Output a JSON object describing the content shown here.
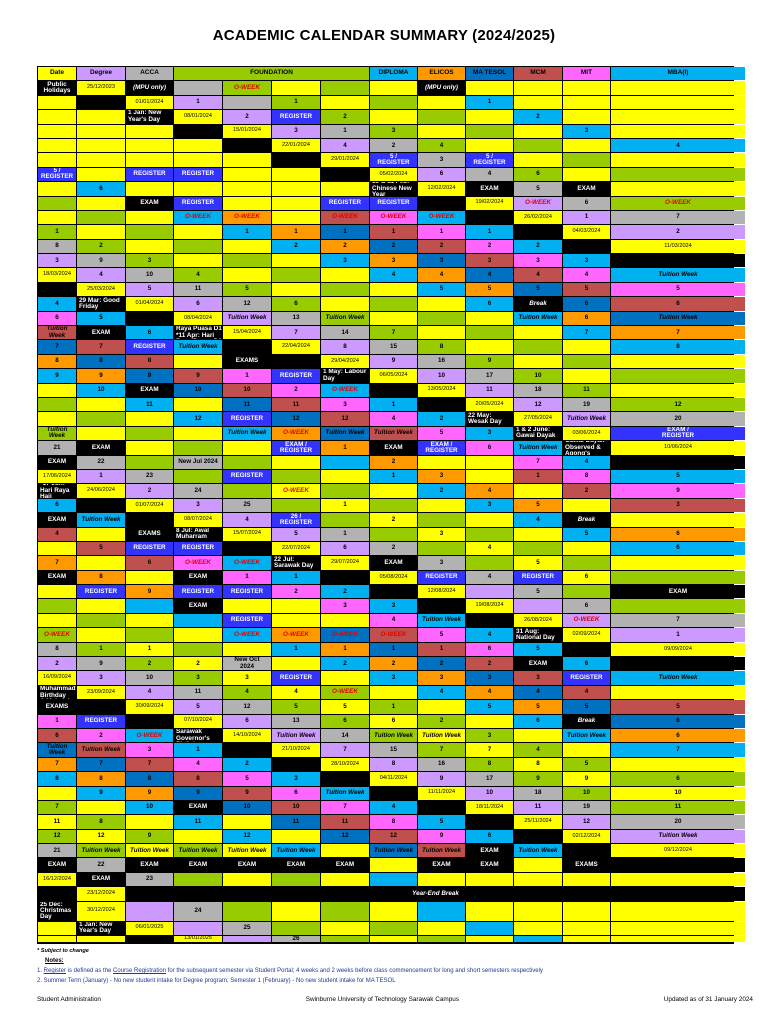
{
  "title": "ACADEMIC CALENDAR SUMMARY (2024/2025)",
  "colors": {
    "lav": "#cc99ff",
    "gray": "#b2b2b2",
    "grn": "#99cc00",
    "yel": "#ffff00",
    "org": "#ff9900",
    "blu": "#0070c0",
    "brn": "#c0504d",
    "pnk": "#ff66ff",
    "cyn": "#00b0f0",
    "blk": "#000000",
    "reg": "#3333ff",
    "hdr": "#ffff00"
  },
  "header": [
    "Date",
    "Degree",
    "ACCA",
    "FOUNDATION",
    "DIPLOMA",
    "ELICOS",
    "MA TESOL",
    "MCM",
    "MIT",
    "MBA(I)",
    "Public Holidays"
  ],
  "header_colors": [
    "hdr",
    "lav",
    "gray",
    "grn",
    "cyn",
    "org",
    "blu",
    "brn",
    "pnk",
    "cyn",
    "blk"
  ],
  "rows": [
    {
      "d": "25/12/2023",
      "deg": "(MPU only)",
      "acca": "",
      "f": [
        "O-WEEK",
        "",
        "",
        ""
      ],
      "dip": "(MPU only)",
      "el": "",
      "ma": "",
      "mcm": "",
      "mit": "",
      "mba": "",
      "hol": ""
    },
    {
      "d": "01/01/2024",
      "deg": "1",
      "acca": "",
      "f": [
        "1",
        "",
        "",
        ""
      ],
      "dip": "1",
      "el": "",
      "ma": "",
      "mcm": "",
      "mit": "",
      "mba": "",
      "hol": "1 Jan: New Year's Day"
    },
    {
      "d": "08/01/2024",
      "deg": "2",
      "acca": "REGISTER",
      "f": [
        "2",
        "",
        "",
        ""
      ],
      "dip": "2",
      "el": "",
      "ma": "",
      "mcm": "",
      "mit": "",
      "mba": "",
      "hol": ""
    },
    {
      "d": "15/01/2024",
      "deg": "3",
      "acca": "1",
      "f": [
        "3",
        "",
        "",
        ""
      ],
      "dip": "3",
      "el": "",
      "ma": "",
      "mcm": "",
      "mit": "",
      "mba": "",
      "hol": ""
    },
    {
      "d": "22/01/2024",
      "deg": "4",
      "acca": "2",
      "f": [
        "4",
        "",
        "",
        ""
      ],
      "dip": "4",
      "el": "",
      "ma": "",
      "mcm": "",
      "mit": "",
      "mba": "",
      "hol": ""
    },
    {
      "d": "29/01/2024",
      "deg": "5 /\nREGISTER",
      "acca": "3",
      "f": [
        "5 /\nREGISTER",
        "",
        "",
        ""
      ],
      "dip": "5 /\nREGISTER",
      "el": "",
      "ma": "REGISTER",
      "mcm": "REGISTER",
      "mit": "",
      "mba": "",
      "hol": ""
    },
    {
      "d": "05/02/2024",
      "deg": "6",
      "acca": "4",
      "f": [
        "6",
        "",
        "",
        ""
      ],
      "dip": "6",
      "el": "",
      "ma": "",
      "mcm": "",
      "mit": "",
      "mba": "",
      "hol": "10 & 11 Feb: Chinese New Year"
    },
    {
      "d": "12/02/2024",
      "deg": "EXAM",
      "acca": "5",
      "f": [
        "EXAM",
        "",
        "",
        ""
      ],
      "dip": "EXAM",
      "el": "REGISTER",
      "ma": "",
      "mcm": "",
      "mit": "REGISTER",
      "mba": "REGISTER",
      "hol": ""
    },
    {
      "d": "19/02/2024",
      "deg": "O-WEEK",
      "acca": "6",
      "f": [
        "O-WEEK",
        "",
        "",
        ""
      ],
      "dip": "O-WEEK",
      "el": "O-WEEK",
      "ma": "",
      "mcm": "O-WEEK",
      "mit": "O-WEEK",
      "mba": "O-WEEK",
      "hol": ""
    },
    {
      "d": "26/02/2024",
      "deg": "1",
      "acca": "7",
      "f": [
        "1",
        "",
        "",
        ""
      ],
      "dip": "1",
      "el": "1",
      "ma": "1",
      "mcm": "1",
      "mit": "1",
      "mba": "1",
      "hol": ""
    },
    {
      "d": "04/03/2024",
      "deg": "2",
      "acca": "8",
      "f": [
        "2",
        "",
        "",
        ""
      ],
      "dip": "2",
      "el": "2",
      "ma": "2",
      "mcm": "2",
      "mit": "2",
      "mba": "2",
      "hol": ""
    },
    {
      "d": "11/03/2024",
      "deg": "3",
      "acca": "9",
      "f": [
        "3",
        "",
        "",
        ""
      ],
      "dip": "3",
      "el": "3",
      "ma": "3",
      "mcm": "3",
      "mit": "3",
      "mba": "3",
      "hol": ""
    },
    {
      "d": "18/03/2024",
      "deg": "4",
      "acca": "10",
      "f": [
        "4",
        "",
        "",
        ""
      ],
      "dip": "4",
      "el": "4",
      "ma": "4",
      "mcm": "4",
      "mit": "4",
      "mba": "Tuition Week",
      "hol": ""
    },
    {
      "d": "25/03/2024",
      "deg": "5",
      "acca": "11",
      "f": [
        "5",
        "",
        "",
        ""
      ],
      "dip": "5",
      "el": "5",
      "ma": "5",
      "mcm": "5",
      "mit": "5",
      "mba": "4",
      "hol": "29 Mar: Good Friday"
    },
    {
      "d": "01/04/2024",
      "deg": "6",
      "acca": "12",
      "f": [
        "6",
        "",
        "",
        ""
      ],
      "dip": "6",
      "el": "Break",
      "ma": "6",
      "mcm": "6",
      "mit": "6",
      "mba": "5",
      "hol": ""
    },
    {
      "d": "08/04/2024",
      "deg": "Tuition Week",
      "acca": "13",
      "f": [
        "Tuition Week",
        "",
        "",
        ""
      ],
      "dip": "Tuition Week",
      "el": "6",
      "ma": "Tuition Week",
      "mcm": "Tuition Week",
      "mit": "EXAM",
      "mba": "6",
      "hol": "*10 Apr: Hari Raya Puasa D1\n*11 Apr: Hari Raya Puasa D2"
    },
    {
      "d": "15/04/2024",
      "deg": "7",
      "acca": "14",
      "f": [
        "7",
        "",
        "",
        ""
      ],
      "dip": "7",
      "el": "7",
      "ma": "7",
      "mcm": "7",
      "mit": "REGISTER",
      "mba": "Tuition Week",
      "hol": ""
    },
    {
      "d": "22/04/2024",
      "deg": "8",
      "acca": "15",
      "f": [
        "8",
        "",
        "",
        ""
      ],
      "dip": "8",
      "el": "8",
      "ma": "8",
      "mcm": "8",
      "mit": "",
      "mba": "EXAMS",
      "hol": ""
    },
    {
      "d": "29/04/2024",
      "deg": "9",
      "acca": "16",
      "f": [
        "9",
        "",
        "",
        ""
      ],
      "dip": "9",
      "el": "9",
      "ma": "9",
      "mcm": "9",
      "mit": "1",
      "mba": "REGISTER",
      "hol": "1 May: Labour Day"
    },
    {
      "d": "06/05/2024",
      "deg": "10",
      "acca": "17",
      "f": [
        "10",
        "",
        "",
        ""
      ],
      "dip": "10",
      "el": "EXAM",
      "ma": "10",
      "mcm": "10",
      "mit": "2",
      "mba": "O-WEEK",
      "hol": ""
    },
    {
      "d": "13/05/2024",
      "deg": "11",
      "acca": "18",
      "f": [
        "11",
        "",
        "",
        ""
      ],
      "dip": "11",
      "el": "",
      "ma": "11",
      "mcm": "11",
      "mit": "3",
      "mba": "1",
      "hol": ""
    },
    {
      "d": "20/05/2024",
      "deg": "12",
      "acca": "19",
      "f": [
        "12",
        "",
        "",
        ""
      ],
      "dip": "12",
      "el": "REGISTER",
      "ma": "12",
      "mcm": "12",
      "mit": "4",
      "mba": "2",
      "hol": "22 May: Wesak Day"
    },
    {
      "d": "27/05/2024",
      "deg": "Tuition Week",
      "acca": "20",
      "f": [
        "Tuition Week",
        "",
        "",
        ""
      ],
      "dip": "Tuition Week",
      "el": "O-WEEK",
      "ma": "Tuition Week",
      "mcm": "Tuition Week",
      "mit": "5",
      "mba": "3",
      "hol": "1 & 2 June: Gawai Dayak"
    },
    {
      "d": "03/06/2024",
      "deg": "EXAM /\nREGISTER",
      "acca": "21",
      "f": [
        "EXAM",
        "",
        "",
        ""
      ],
      "dip": "EXAM /\nREGISTER",
      "el": "1",
      "ma": "EXAM",
      "mcm": "EXAM /\nREGISTER",
      "mit": "6",
      "mba": "Tuition Week",
      "hol": "3 & 4 June: Gawai Dayak Observed &\nAgong's Birthday"
    },
    {
      "d": "10/06/2024",
      "deg": "EXAM",
      "acca": "22",
      "f": [
        "",
        "New Jul 2024",
        "",
        ""
      ],
      "dip": "",
      "el": "2",
      "ma": "",
      "mcm": "",
      "mit": "7",
      "mba": "4",
      "hol": ""
    },
    {
      "d": "17/06/2024",
      "deg": "1",
      "acca": "23",
      "f": [
        "",
        "REGISTER",
        "",
        ""
      ],
      "dip": "1",
      "el": "3",
      "ma": "",
      "mcm": "1",
      "mit": "8",
      "mba": "5",
      "hol": "*17 Jun: Hari Raya Haji"
    },
    {
      "d": "24/06/2024",
      "deg": "2",
      "acca": "24",
      "f": [
        "",
        "O-WEEK",
        "",
        ""
      ],
      "dip": "2",
      "el": "4",
      "ma": "",
      "mcm": "2",
      "mit": "9",
      "mba": "6",
      "hol": ""
    },
    {
      "d": "01/07/2024",
      "deg": "3",
      "acca": "25",
      "f": [
        "",
        "1",
        "",
        ""
      ],
      "dip": "3",
      "el": "5",
      "ma": "",
      "mcm": "3",
      "mit": "EXAM",
      "mba": "Tuition Week",
      "hol": ""
    },
    {
      "d": "08/07/2024",
      "deg": "4",
      "acca": "26 /\nREGISTER",
      "f": [
        "",
        "2",
        "",
        ""
      ],
      "dip": "4",
      "el": "Break",
      "ma": "",
      "mcm": "4",
      "mit": "",
      "mba": "EXAMS",
      "hol": "8 Jul: Awal Muharram"
    },
    {
      "d": "15/07/2024",
      "deg": "5",
      "acca": "1",
      "f": [
        "",
        "3",
        "",
        ""
      ],
      "dip": "5",
      "el": "6",
      "ma": "",
      "mcm": "5",
      "mit": "REGISTER",
      "mba": "REGISTER",
      "hol": ""
    },
    {
      "d": "22/07/2024",
      "deg": "6",
      "acca": "2",
      "f": [
        "",
        "4",
        "",
        ""
      ],
      "dip": "6",
      "el": "7",
      "ma": "",
      "mcm": "6",
      "mit": "O-WEEK",
      "mba": "O-WEEK",
      "hol": "22 Jul: Sarawak Day"
    },
    {
      "d": "29/07/2024",
      "deg": "EXAM",
      "acca": "3",
      "f": [
        "",
        "5",
        "",
        ""
      ],
      "dip": "EXAM",
      "el": "8",
      "ma": "",
      "mcm": "EXAM",
      "mit": "1",
      "mba": "1",
      "hol": ""
    },
    {
      "d": "05/08/2024",
      "deg": "REGISTER",
      "acca": "4",
      "f": [
        "REGISTER",
        "6",
        "",
        ""
      ],
      "dip": "REGISTER",
      "el": "9",
      "ma": "REGISTER",
      "mcm": "REGISTER",
      "mit": "2",
      "mba": "2",
      "hol": ""
    },
    {
      "d": "12/08/2024",
      "deg": "",
      "acca": "5",
      "f": [
        "",
        "EXAM",
        "",
        ""
      ],
      "dip": "",
      "el": "EXAM",
      "ma": "",
      "mcm": "",
      "mit": "3",
      "mba": "3",
      "hol": ""
    },
    {
      "d": "19/08/2024",
      "deg": "",
      "acca": "6",
      "f": [
        "",
        "",
        "",
        ""
      ],
      "dip": "",
      "el": "REGISTER",
      "ma": "",
      "mcm": "",
      "mit": "4",
      "mba": "Tuition Week",
      "hol": ""
    },
    {
      "d": "26/08/2024",
      "deg": "O-WEEK",
      "acca": "7",
      "f": [
        "O-WEEK",
        "",
        "",
        ""
      ],
      "dip": "O-WEEK",
      "el": "O-WEEK",
      "ma": "O-WEEK",
      "mcm": "O-WEEK",
      "mit": "5",
      "mba": "4",
      "hol": "31 Aug: National Day"
    },
    {
      "d": "02/09/2024",
      "deg": "1",
      "acca": "8",
      "f": [
        "1",
        "1",
        "",
        ""
      ],
      "dip": "1",
      "el": "1",
      "ma": "1",
      "mcm": "1",
      "mit": "6",
      "mba": "5",
      "hol": ""
    },
    {
      "d": "09/09/2024",
      "deg": "2",
      "acca": "9",
      "f": [
        "2",
        "2",
        "New Oct\n2024",
        ""
      ],
      "dip": "2",
      "el": "2",
      "ma": "2",
      "mcm": "2",
      "mit": "EXAM",
      "mba": "6",
      "hol": ""
    },
    {
      "d": "16/09/2024",
      "deg": "3",
      "acca": "10",
      "f": [
        "3",
        "3",
        "REGISTER",
        ""
      ],
      "dip": "3",
      "el": "3",
      "ma": "3",
      "mcm": "3",
      "mit": "REGISTER",
      "mba": "Tuition Week",
      "hol": "16 Sep: Prophet Muhammad's Birthday\n& Malaysia Day"
    },
    {
      "d": "23/09/2024",
      "deg": "4",
      "acca": "11",
      "f": [
        "4",
        "4",
        "O-WEEK",
        ""
      ],
      "dip": "4",
      "el": "4",
      "ma": "4",
      "mcm": "4",
      "mit": "",
      "mba": "EXAMS",
      "hol": ""
    },
    {
      "d": "30/09/2024",
      "deg": "5",
      "acca": "12",
      "f": [
        "5",
        "5",
        "1",
        ""
      ],
      "dip": "5",
      "el": "5",
      "ma": "5",
      "mcm": "5",
      "mit": "1",
      "mba": "REGISTER",
      "hol": ""
    },
    {
      "d": "07/10/2024",
      "deg": "6",
      "acca": "13",
      "f": [
        "6",
        "6",
        "2",
        ""
      ],
      "dip": "6",
      "el": "Break",
      "ma": "6",
      "mcm": "6",
      "mit": "2",
      "mba": "O-WEEK",
      "hol": "12 Oct: Sarawak Governor's Birthday"
    },
    {
      "d": "14/10/2024",
      "deg": "Tuition Week",
      "acca": "14",
      "f": [
        "Tuition Week",
        "Tuition Week",
        "3",
        ""
      ],
      "dip": "Tuition Week",
      "el": "6",
      "ma": "Tuition Week",
      "mcm": "Tuition Week",
      "mit": "3",
      "mba": "1",
      "hol": ""
    },
    {
      "d": "21/10/2024",
      "deg": "7",
      "acca": "15",
      "f": [
        "7",
        "7",
        "4",
        ""
      ],
      "dip": "7",
      "el": "7",
      "ma": "7",
      "mcm": "7",
      "mit": "4",
      "mba": "2",
      "hol": ""
    },
    {
      "d": "28/10/2024",
      "deg": "8",
      "acca": "16",
      "f": [
        "8",
        "8",
        "5",
        ""
      ],
      "dip": "8",
      "el": "8",
      "ma": "8",
      "mcm": "8",
      "mit": "5",
      "mba": "3",
      "hol": ""
    },
    {
      "d": "04/11/2024",
      "deg": "9",
      "acca": "17",
      "f": [
        "9",
        "9",
        "6",
        ""
      ],
      "dip": "9",
      "el": "9",
      "ma": "9",
      "mcm": "9",
      "mit": "6",
      "mba": "Tuition Week",
      "hol": ""
    },
    {
      "d": "11/11/2024",
      "deg": "10",
      "acca": "18",
      "f": [
        "10",
        "10",
        "7",
        ""
      ],
      "dip": "10",
      "el": "EXAM",
      "ma": "10",
      "mcm": "10",
      "mit": "7",
      "mba": "4",
      "hol": ""
    },
    {
      "d": "18/11/2024",
      "deg": "11",
      "acca": "19",
      "f": [
        "11",
        "11",
        "8",
        ""
      ],
      "dip": "11",
      "el": "",
      "ma": "11",
      "mcm": "11",
      "mit": "8",
      "mba": "5",
      "hol": ""
    },
    {
      "d": "25/11/2024",
      "deg": "12",
      "acca": "20",
      "f": [
        "12",
        "12",
        "9",
        ""
      ],
      "dip": "12",
      "el": "",
      "ma": "12",
      "mcm": "12",
      "mit": "9",
      "mba": "6",
      "hol": ""
    },
    {
      "d": "02/12/2024",
      "deg": "Tuition Week",
      "acca": "21",
      "f": [
        "Tuition Week",
        "Tuition Week",
        "Tuition Week",
        "Tuition Week"
      ],
      "dip": "Tuition Week",
      "el": "",
      "ma": "Tuition Week",
      "mcm": "Tuition Week",
      "mit": "EXAM",
      "mba": "Tuition Week",
      "hol": ""
    },
    {
      "d": "09/12/2024",
      "deg": "EXAM",
      "acca": "22",
      "f": [
        "EXAM",
        "EXAM",
        "EXAM",
        "EXAM"
      ],
      "dip": "EXAM",
      "el": "",
      "ma": "EXAM",
      "mcm": "EXAM",
      "mit": "",
      "mba": "EXAMS",
      "hol": ""
    },
    {
      "d": "16/12/2024",
      "deg": "EXAM",
      "acca": "23",
      "f": [
        "",
        "",
        "",
        ""
      ],
      "dip": "",
      "el": "",
      "ma": "",
      "mcm": "",
      "mit": "",
      "mba": "",
      "hol": ""
    },
    {
      "d": "23/12/2024",
      "yearend": "Year-End Break",
      "hol": "25 Dec: Christmas Day"
    },
    {
      "d": "30/12/2024",
      "deg": "",
      "acca": "24",
      "f": [
        "",
        "",
        "",
        ""
      ],
      "dip": "",
      "el": "",
      "ma": "",
      "mcm": "",
      "mit": "",
      "mba": "",
      "hol": "1 Jan: New Year's Day"
    },
    {
      "d": "06/01/2025",
      "deg": "",
      "acca": "25",
      "f": [
        "",
        "",
        "",
        ""
      ],
      "dip": "",
      "el": "",
      "ma": "",
      "mcm": "",
      "mit": "",
      "mba": "",
      "hol": ""
    },
    {
      "d": "13/01/2025",
      "deg": "",
      "acca": "26",
      "f": [
        "",
        "",
        "",
        ""
      ],
      "dip": "",
      "el": "",
      "ma": "",
      "mcm": "",
      "mit": "",
      "mba": "",
      "hol": ""
    }
  ],
  "footnote": "* Subject to change",
  "notes_title": "Notes:",
  "note1": {
    "a": "1. ",
    "b": "Register",
    "c": " is defined as the ",
    "d": "Course Registration",
    "e": " for the subsequent semester via Student Portal; 4 weeks and 2 weeks before class commencement for long and short semesters respectively"
  },
  "note2": "2. Summer Term (January) - No new student intake for Degree program; Semester 1 (February) - No new student intake for MA TESOL",
  "bottom": {
    "left": "Student Administration",
    "center": "Swinburne University of Technology Sarawak Campus",
    "right": "Updated as of 31 January 2024"
  }
}
